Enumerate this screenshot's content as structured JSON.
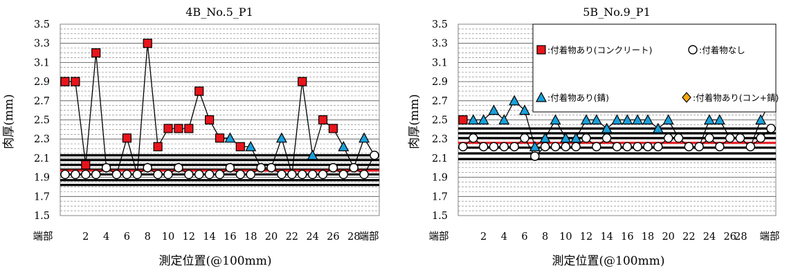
{
  "chart_data": [
    {
      "type": "line",
      "title": "4B_No.5_P1",
      "xlabel": "測定位置(@100mm)",
      "ylabel": "肉厚(mm)",
      "ylim": [
        1.5,
        3.5
      ],
      "yticks": [
        "3.5",
        "3.3",
        "3.1",
        "2.9",
        "2.7",
        "2.5",
        "2.3",
        "2.1",
        "1.9",
        "1.7",
        "1.5"
      ],
      "xtick_labels": [
        "端部",
        "2",
        "4",
        "6",
        "8",
        "10",
        "12",
        "14",
        "16",
        "18",
        "20",
        "22",
        "24",
        "26",
        "28",
        "端部"
      ],
      "grid": true,
      "reference_lines": {
        "black": [
          2.13,
          2.08,
          2.03,
          1.98,
          1.93,
          1.87,
          1.82
        ],
        "red": [
          1.97
        ]
      },
      "series": [
        {
          "name": "付着物あり(コンクリート)",
          "marker": "square",
          "color": "#e8141b",
          "points": [
            [
              0,
              2.9
            ],
            [
              1,
              2.9
            ],
            [
              2,
              2.03
            ],
            [
              3,
              3.2
            ],
            [
              6,
              2.31
            ],
            [
              8,
              3.3
            ],
            [
              9,
              2.22
            ],
            [
              10,
              2.41
            ],
            [
              11,
              2.41
            ],
            [
              12,
              2.41
            ],
            [
              13,
              2.8
            ],
            [
              14,
              2.5
            ],
            [
              15,
              2.31
            ],
            [
              17,
              2.22
            ],
            [
              23,
              2.9
            ],
            [
              25,
              2.5
            ],
            [
              26,
              2.41
            ]
          ]
        },
        {
          "name": "付着物あり(錆)",
          "marker": "triangle",
          "color": "#1a9fd9",
          "points": [
            [
              16,
              2.31
            ],
            [
              18,
              2.22
            ],
            [
              21,
              2.31
            ],
            [
              24,
              2.13
            ],
            [
              27,
              2.22
            ],
            [
              29,
              2.31
            ]
          ]
        },
        {
          "name": "付着物なし",
          "marker": "circle",
          "color": "#ffffff",
          "points": [
            [
              0,
              1.93
            ],
            [
              1,
              1.93
            ],
            [
              2,
              1.93
            ],
            [
              3,
              1.93
            ],
            [
              4,
              2.0
            ],
            [
              5,
              1.93
            ],
            [
              6,
              1.93
            ],
            [
              7,
              1.93
            ],
            [
              8,
              2.0
            ],
            [
              9,
              1.93
            ],
            [
              10,
              1.93
            ],
            [
              11,
              2.0
            ],
            [
              12,
              1.93
            ],
            [
              13,
              1.93
            ],
            [
              14,
              1.93
            ],
            [
              15,
              1.93
            ],
            [
              16,
              2.0
            ],
            [
              17,
              1.93
            ],
            [
              18,
              1.93
            ],
            [
              19,
              2.0
            ],
            [
              20,
              2.0
            ],
            [
              21,
              1.93
            ],
            [
              22,
              1.93
            ],
            [
              23,
              1.93
            ],
            [
              24,
              1.93
            ],
            [
              25,
              1.93
            ],
            [
              26,
              2.0
            ],
            [
              27,
              1.93
            ],
            [
              28,
              2.0
            ],
            [
              29,
              1.93
            ],
            [
              30,
              2.13
            ]
          ]
        }
      ],
      "connector": [
        [
          0,
          2.9
        ],
        [
          1,
          2.9
        ],
        [
          2,
          2.03
        ],
        [
          3,
          3.2
        ],
        [
          4,
          2.0
        ],
        [
          5,
          1.93
        ],
        [
          6,
          2.31
        ],
        [
          7,
          1.93
        ],
        [
          8,
          3.3
        ],
        [
          9,
          2.22
        ],
        [
          10,
          2.41
        ],
        [
          11,
          2.41
        ],
        [
          12,
          2.41
        ],
        [
          13,
          2.8
        ],
        [
          14,
          2.5
        ],
        [
          15,
          2.31
        ],
        [
          16,
          2.31
        ],
        [
          17,
          2.22
        ],
        [
          18,
          2.22
        ],
        [
          19,
          2.0
        ],
        [
          20,
          2.0
        ],
        [
          21,
          2.31
        ],
        [
          22,
          1.93
        ],
        [
          23,
          2.9
        ],
        [
          24,
          2.13
        ],
        [
          25,
          2.5
        ],
        [
          26,
          2.41
        ],
        [
          27,
          2.22
        ],
        [
          28,
          2.0
        ],
        [
          29,
          2.31
        ],
        [
          30,
          2.13
        ]
      ]
    },
    {
      "type": "line",
      "title": "5B_No.9_P1",
      "xlabel": "測定位置(@100mm)",
      "ylabel": "肉厚(mm)",
      "ylim": [
        1.5,
        3.5
      ],
      "yticks": [
        "3.5",
        "3.3",
        "3.1",
        "2.9",
        "2.7",
        "2.5",
        "2.3",
        "2.1",
        "1.9",
        "1.7",
        "1.5"
      ],
      "xtick_labels": [
        "端部",
        "2",
        "4",
        "6",
        "8",
        "10",
        "12",
        "14",
        "16",
        "18",
        "20",
        "22",
        "24",
        "26",
        "28",
        "端部"
      ],
      "grid": true,
      "reference_lines": {
        "black": [
          2.41,
          2.36,
          2.31,
          2.21,
          2.15,
          2.09
        ],
        "red": [
          2.26
        ]
      },
      "legend": {
        "position": "top-right",
        "entries": [
          {
            "text": ":付着物あり(コンクリート)",
            "marker": "square",
            "color": "#e8141b"
          },
          {
            "text": ":付着物なし",
            "marker": "circle",
            "color": "#ffffff"
          },
          {
            "text": ":付着物あり(錆)",
            "marker": "triangle",
            "color": "#1a9fd9"
          },
          {
            "text": ":付着物あり(コン+錆)",
            "marker": "diamond",
            "color": "#f5a70f"
          }
        ]
      },
      "series": [
        {
          "name": "付着物あり(コンクリート)",
          "marker": "square",
          "color": "#e8141b",
          "points": [
            [
              0,
              2.5
            ]
          ]
        },
        {
          "name": "付着物あり(錆)",
          "marker": "triangle",
          "color": "#1a9fd9",
          "points": [
            [
              1,
              2.5
            ],
            [
              2,
              2.5
            ],
            [
              3,
              2.6
            ],
            [
              4,
              2.5
            ],
            [
              5,
              2.7
            ],
            [
              6,
              2.6
            ],
            [
              7,
              2.22
            ],
            [
              8,
              2.31
            ],
            [
              9,
              2.5
            ],
            [
              10,
              2.31
            ],
            [
              11,
              2.31
            ],
            [
              12,
              2.5
            ],
            [
              13,
              2.5
            ],
            [
              14,
              2.41
            ],
            [
              15,
              2.5
            ],
            [
              16,
              2.5
            ],
            [
              17,
              2.5
            ],
            [
              18,
              2.5
            ],
            [
              19,
              2.41
            ],
            [
              20,
              2.5
            ],
            [
              24,
              2.5
            ],
            [
              25,
              2.5
            ],
            [
              29,
              2.5
            ]
          ]
        },
        {
          "name": "付着物あり(コン+錆)",
          "marker": "diamond",
          "color": "#f5a70f",
          "points": [
            [
              30,
              2.7
            ]
          ]
        },
        {
          "name": "付着物なし",
          "marker": "circle",
          "color": "#ffffff",
          "points": [
            [
              0,
              2.22
            ],
            [
              1,
              2.31
            ],
            [
              2,
              2.22
            ],
            [
              3,
              2.22
            ],
            [
              4,
              2.22
            ],
            [
              5,
              2.22
            ],
            [
              6,
              2.31
            ],
            [
              7,
              2.12
            ],
            [
              8,
              2.22
            ],
            [
              9,
              2.22
            ],
            [
              10,
              2.22
            ],
            [
              11,
              2.22
            ],
            [
              12,
              2.31
            ],
            [
              13,
              2.22
            ],
            [
              14,
              2.31
            ],
            [
              15,
              2.22
            ],
            [
              16,
              2.22
            ],
            [
              17,
              2.22
            ],
            [
              18,
              2.22
            ],
            [
              19,
              2.22
            ],
            [
              20,
              2.31
            ],
            [
              21,
              2.31
            ],
            [
              22,
              2.22
            ],
            [
              23,
              2.22
            ],
            [
              24,
              2.31
            ],
            [
              25,
              2.22
            ],
            [
              26,
              2.31
            ],
            [
              27,
              2.31
            ],
            [
              28,
              2.22
            ],
            [
              29,
              2.31
            ],
            [
              30,
              2.41
            ]
          ]
        }
      ],
      "connector": [
        [
          0,
          2.5
        ],
        [
          1,
          2.5
        ],
        [
          2,
          2.5
        ],
        [
          3,
          2.6
        ],
        [
          4,
          2.5
        ],
        [
          5,
          2.7
        ],
        [
          6,
          2.6
        ],
        [
          7,
          2.22
        ],
        [
          8,
          2.31
        ],
        [
          9,
          2.5
        ],
        [
          10,
          2.31
        ],
        [
          11,
          2.31
        ],
        [
          12,
          2.5
        ],
        [
          13,
          2.5
        ],
        [
          14,
          2.41
        ],
        [
          15,
          2.5
        ],
        [
          16,
          2.5
        ],
        [
          17,
          2.5
        ],
        [
          18,
          2.5
        ],
        [
          19,
          2.41
        ],
        [
          20,
          2.5
        ],
        [
          21,
          2.31
        ],
        [
          22,
          2.22
        ],
        [
          23,
          2.22
        ],
        [
          24,
          2.5
        ],
        [
          25,
          2.5
        ],
        [
          26,
          2.31
        ],
        [
          27,
          2.31
        ],
        [
          28,
          2.22
        ],
        [
          29,
          2.5
        ],
        [
          30,
          2.7
        ]
      ]
    }
  ]
}
